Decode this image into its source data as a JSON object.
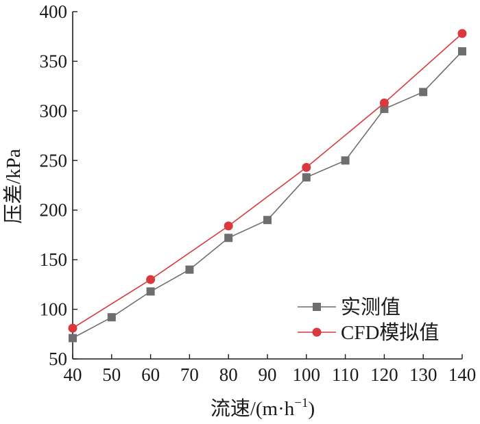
{
  "chart_data": {
    "type": "line",
    "xlabel_main": "流速/(m·h",
    "xlabel_sup": "−1",
    "xlabel_end": ")",
    "ylabel": "压差/kPa",
    "xlim": [
      40,
      140
    ],
    "ylim": [
      50,
      400
    ],
    "x_ticks": [
      40,
      50,
      60,
      70,
      80,
      90,
      100,
      110,
      120,
      130,
      140
    ],
    "y_ticks": [
      50,
      100,
      150,
      200,
      250,
      300,
      350,
      400
    ],
    "grid": false,
    "legend_position": "bottom-right",
    "series": [
      {
        "name": "实测值",
        "color": "#6e6e6e",
        "marker": "square",
        "x": [
          40,
          50,
          60,
          70,
          80,
          90,
          100,
          110,
          120,
          130,
          140
        ],
        "y": [
          71,
          92,
          118,
          140,
          172,
          190,
          233,
          250,
          302,
          319,
          360
        ]
      },
      {
        "name": "CFD模拟值",
        "color": "#d9383d",
        "marker": "circle",
        "x": [
          40,
          60,
          80,
          100,
          120,
          140
        ],
        "y": [
          81,
          130,
          184,
          243,
          308,
          378
        ]
      }
    ]
  }
}
